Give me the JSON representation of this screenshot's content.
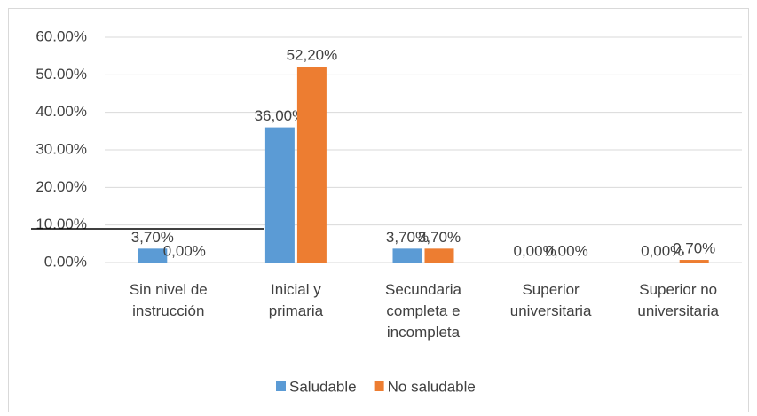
{
  "chart_data": {
    "type": "bar",
    "categories": [
      "Sin nivel de\ninstrucción",
      "Inicial y\nprimaria",
      "Secundaria\ncompleta e\nincompleta",
      "Superior\nuniversitaria",
      "Superior no\nuniversitaria"
    ],
    "series": [
      {
        "name": "Saludable",
        "color": "#5b9bd5",
        "values": [
          3.7,
          36.0,
          3.7,
          0,
          0
        ],
        "value_labels": [
          "3,70%",
          "36,00%",
          "3,70%",
          "0,00%",
          "0,00%"
        ]
      },
      {
        "name": "No saludable",
        "color": "#ed7d31",
        "values": [
          0,
          52.2,
          3.7,
          0,
          0.7
        ],
        "value_labels": [
          "0,00%",
          "52,20%",
          "3,70%",
          "0,00%",
          "0,70%"
        ]
      }
    ],
    "ylim": [
      0,
      60
    ],
    "yticks": [
      {
        "value": 0,
        "label": "0.00%"
      },
      {
        "value": 10,
        "label": "10.00%"
      },
      {
        "value": 20,
        "label": "20.00%"
      },
      {
        "value": 30,
        "label": "30.00%"
      },
      {
        "value": 40,
        "label": "40.00%"
      },
      {
        "value": 50,
        "label": "50.00%"
      },
      {
        "value": 60,
        "label": "60.00%"
      }
    ],
    "grid": true,
    "legend": "bottom"
  }
}
